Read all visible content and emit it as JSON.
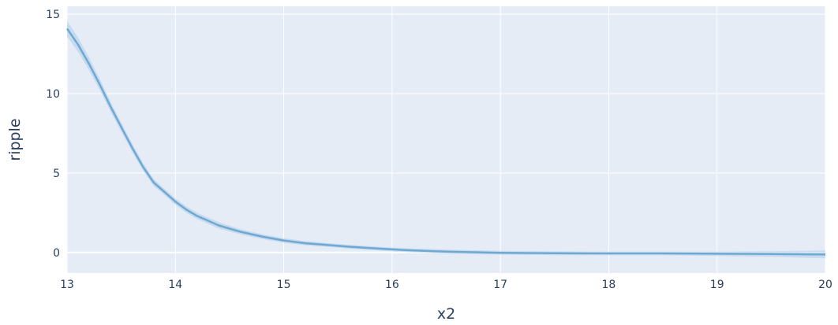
{
  "chart_data": {
    "type": "line",
    "xlabel": "x2",
    "ylabel": "ripple",
    "xlim": [
      13,
      20
    ],
    "ylim": [
      -1.3,
      15.5
    ],
    "x_ticks": [
      13,
      14,
      15,
      16,
      17,
      18,
      19,
      20
    ],
    "y_ticks": [
      0,
      5,
      10,
      15
    ],
    "grid": true,
    "legend": "none",
    "colors": {
      "plot_background": "#e5ecf6",
      "grid": "#ffffff",
      "line": "#6fa8d1",
      "band": "#9fc5e8",
      "text": "#2a3f5f"
    },
    "series": [
      {
        "x": [
          13.0,
          13.1,
          13.2,
          13.3,
          13.4,
          13.5,
          13.6,
          13.7,
          13.8,
          13.9,
          14.0,
          14.1,
          14.2,
          14.3,
          14.4,
          14.5,
          14.6,
          14.8,
          15.0,
          15.2,
          15.4,
          15.6,
          15.8,
          16.0,
          16.2,
          16.5,
          17.0,
          17.5,
          18.0,
          18.5,
          19.0,
          19.5,
          20.0
        ],
        "y": [
          14.1,
          13.1,
          11.9,
          10.6,
          9.2,
          7.9,
          6.6,
          5.4,
          4.4,
          3.8,
          3.2,
          2.7,
          2.3,
          2.0,
          1.7,
          1.5,
          1.3,
          1.0,
          0.75,
          0.58,
          0.47,
          0.36,
          0.27,
          0.19,
          0.12,
          0.05,
          -0.02,
          -0.05,
          -0.06,
          -0.06,
          -0.08,
          -0.1,
          -0.13
        ],
        "band_halfwidth": [
          0.5,
          0.45,
          0.4,
          0.35,
          0.3,
          0.28,
          0.26,
          0.24,
          0.22,
          0.2,
          0.2,
          0.2,
          0.2,
          0.2,
          0.2,
          0.18,
          0.16,
          0.15,
          0.14,
          0.13,
          0.12,
          0.12,
          0.12,
          0.12,
          0.12,
          0.12,
          0.12,
          0.12,
          0.12,
          0.12,
          0.14,
          0.18,
          0.25
        ]
      }
    ]
  }
}
